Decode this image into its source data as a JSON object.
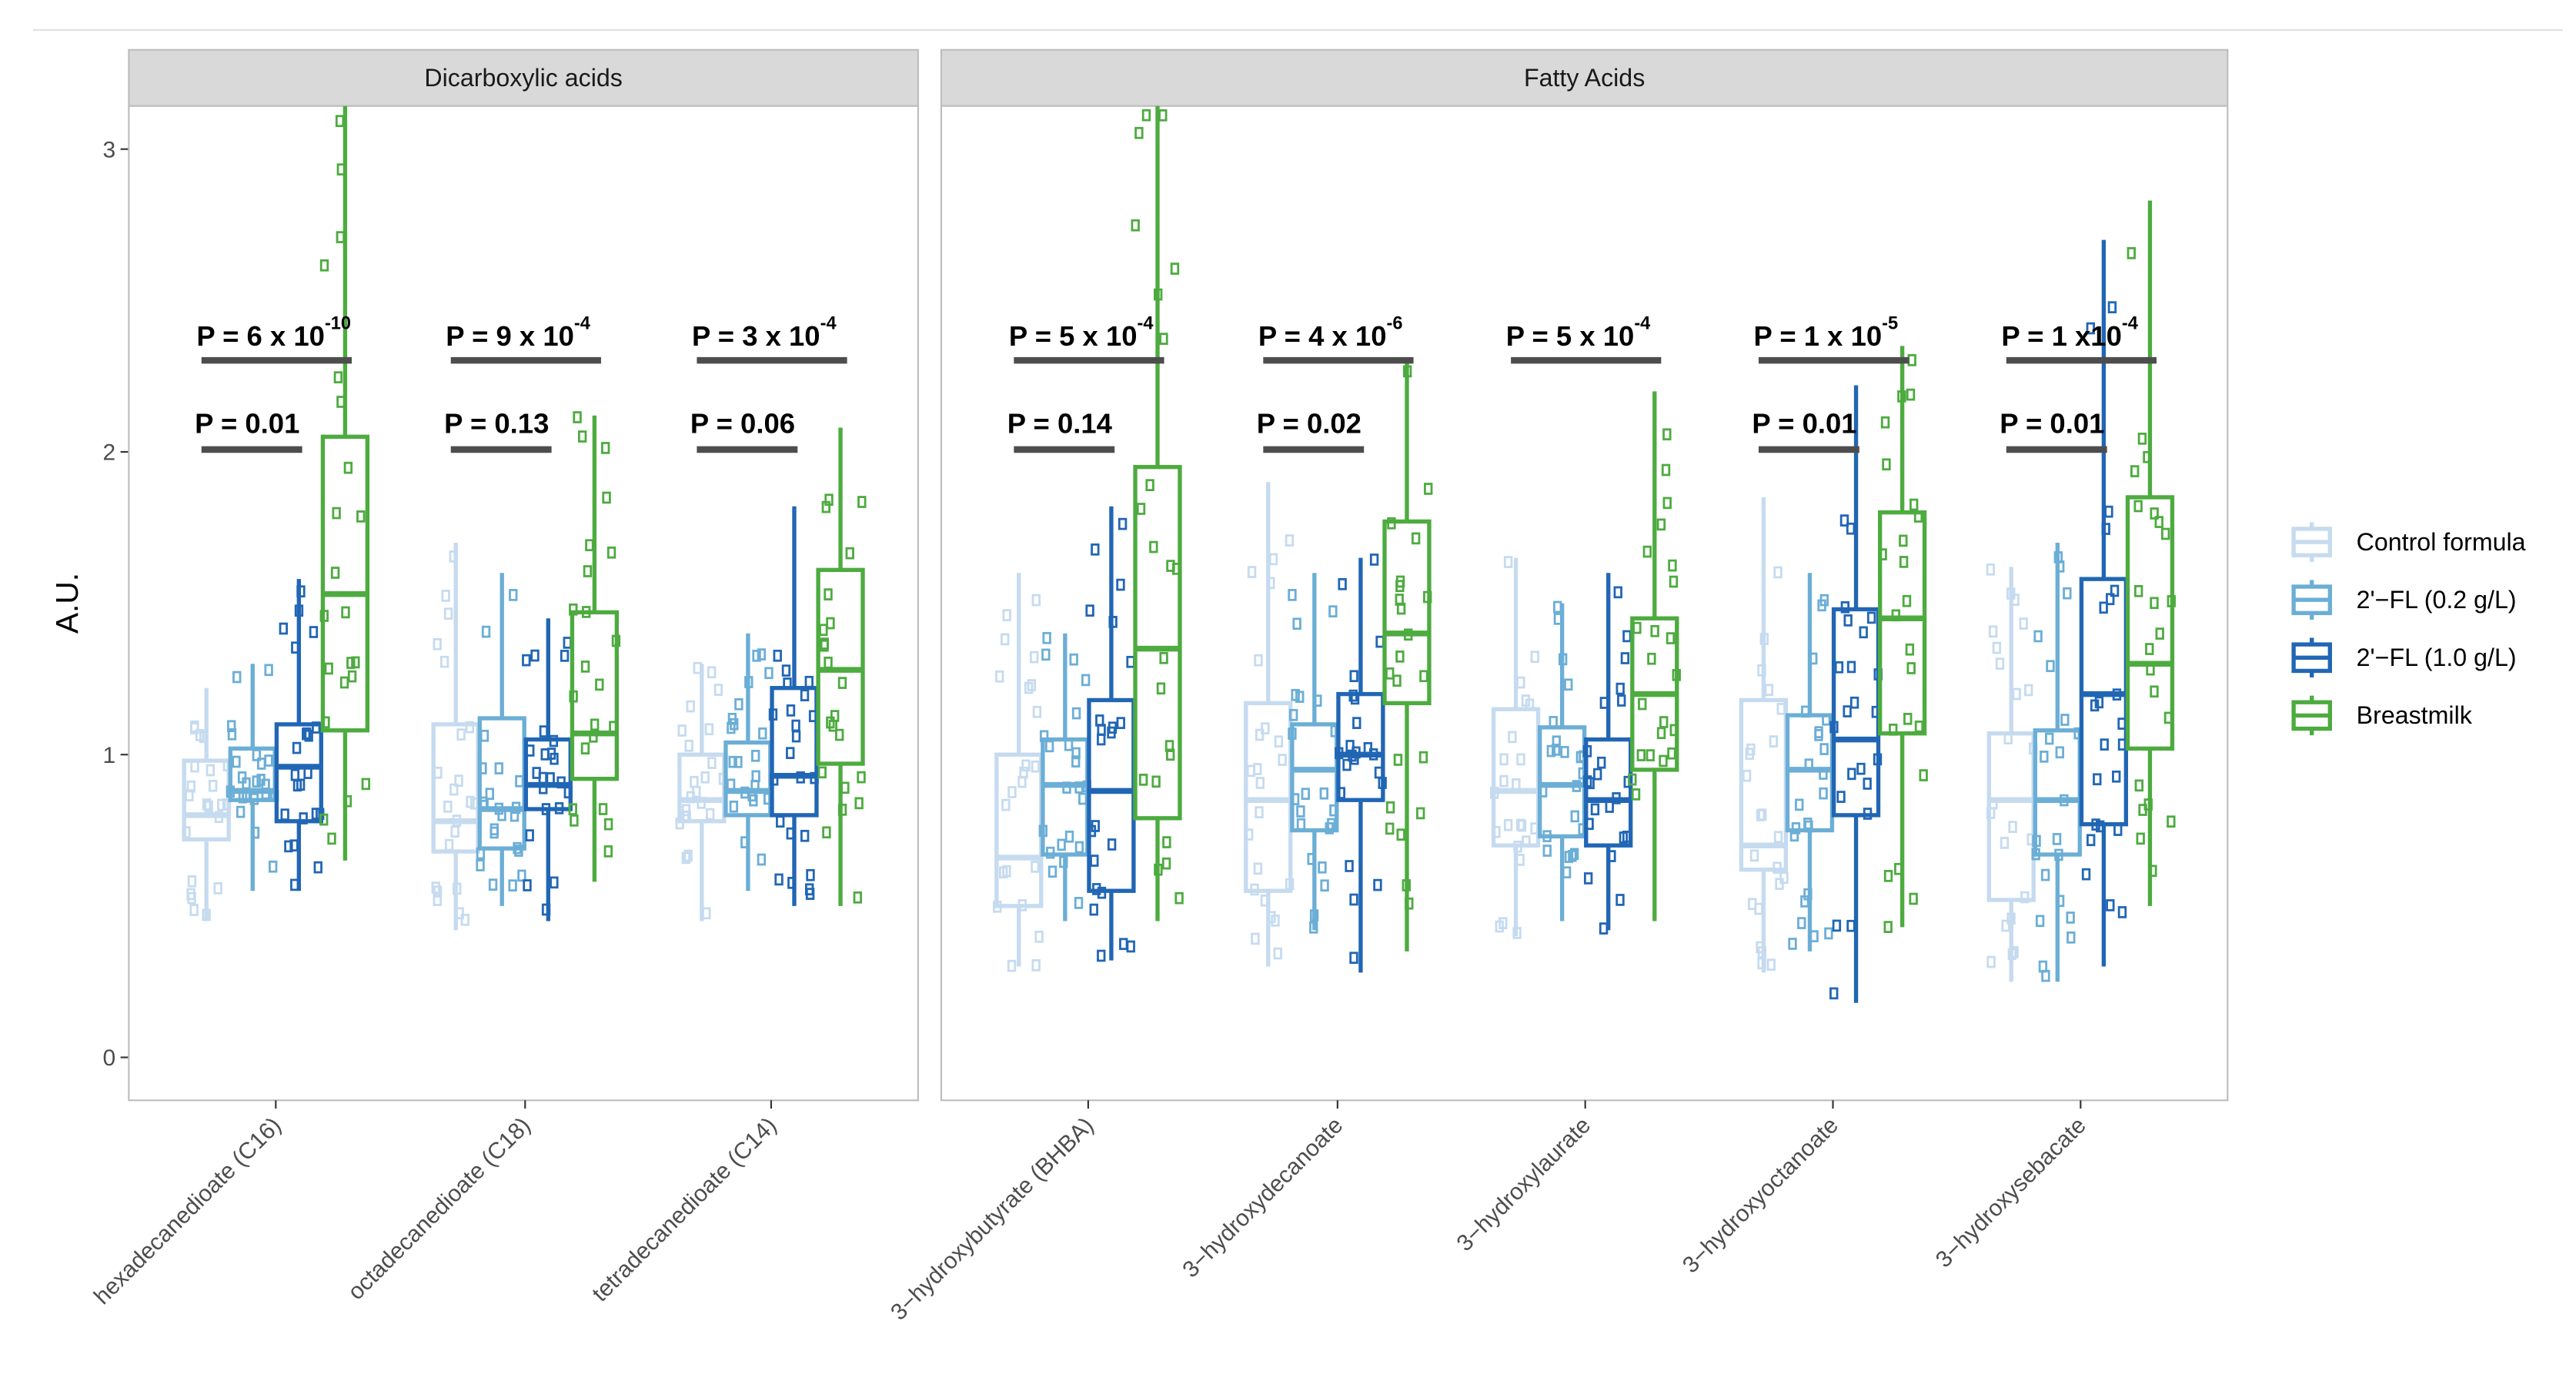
{
  "chart_data": {
    "type": "box",
    "ylabel": "A.U.",
    "xlabel": "",
    "ylim": [
      -0.15,
      3.1
    ],
    "yticks": [
      "0",
      "1",
      "2",
      "3"
    ],
    "grid": false,
    "legend_position": "right",
    "groups": [
      {
        "name": "Control formula",
        "color": "#c6dbef"
      },
      {
        "name": "2'−FL (0.2 g/L)",
        "color": "#6baed6"
      },
      {
        "name": "2'−FL (1.0 g/L)",
        "color": "#2166b5"
      },
      {
        "name": "Breastmilk",
        "color": "#4dab3f"
      }
    ],
    "facets": [
      {
        "title": "Dicarboxylic acids",
        "categories": [
          {
            "name": "hexadecanedioate (C16)",
            "p_long": {
              "base": "P = 6 x 10",
              "exp": "-10"
            },
            "p_short": "P = 0.01",
            "boxes": [
              [
                0.45,
                0.72,
                0.8,
                0.98,
                1.22
              ],
              [
                0.55,
                0.85,
                0.88,
                1.02,
                1.3
              ],
              [
                0.55,
                0.78,
                0.96,
                1.1,
                1.58
              ],
              [
                0.65,
                1.08,
                1.53,
                2.05,
                3.15
              ]
            ]
          },
          {
            "name": "octadecanedioate (C18)",
            "p_long": {
              "base": "P = 9 x 10",
              "exp": "-4"
            },
            "p_short": "P = 0.13",
            "boxes": [
              [
                0.42,
                0.68,
                0.78,
                1.1,
                1.7
              ],
              [
                0.5,
                0.69,
                0.82,
                1.12,
                1.6
              ],
              [
                0.45,
                0.82,
                0.9,
                1.05,
                1.45
              ],
              [
                0.58,
                0.92,
                1.07,
                1.47,
                2.12
              ]
            ]
          },
          {
            "name": "tetradecanedioate (C14)",
            "p_long": {
              "base": "P = 3 x 10",
              "exp": "-4"
            },
            "p_short": "P = 0.06",
            "boxes": [
              [
                0.45,
                0.78,
                0.85,
                1.0,
                1.3
              ],
              [
                0.55,
                0.8,
                0.88,
                1.04,
                1.4
              ],
              [
                0.5,
                0.8,
                0.93,
                1.22,
                1.82
              ],
              [
                0.5,
                0.97,
                1.28,
                1.61,
                2.08
              ]
            ]
          }
        ]
      },
      {
        "title": "Fatty Acids",
        "categories": [
          {
            "name": "3−hydroxybutyrate (BHBA)",
            "p_long": {
              "base": "P = 5 x 10",
              "exp": "-4"
            },
            "p_short": "P = 0.14",
            "boxes": [
              [
                0.3,
                0.5,
                0.66,
                1.0,
                1.6
              ],
              [
                0.45,
                0.67,
                0.9,
                1.05,
                1.4
              ],
              [
                0.32,
                0.55,
                0.88,
                1.18,
                1.82
              ],
              [
                0.45,
                0.79,
                1.35,
                1.95,
                3.15
              ]
            ]
          },
          {
            "name": "3−hydroxydecanoate",
            "p_long": {
              "base": "P = 4 x 10",
              "exp": "-6"
            },
            "p_short": "P = 0.02",
            "boxes": [
              [
                0.3,
                0.55,
                0.85,
                1.17,
                1.9
              ],
              [
                0.42,
                0.75,
                0.95,
                1.1,
                1.6
              ],
              [
                0.28,
                0.85,
                1.0,
                1.2,
                1.65
              ],
              [
                0.35,
                1.17,
                1.4,
                1.77,
                2.3
              ]
            ]
          },
          {
            "name": "3−hydroxylaurate",
            "p_long": {
              "base": "P = 5 x 10",
              "exp": "-4"
            },
            "p_short": null,
            "boxes": [
              [
                0.4,
                0.7,
                0.88,
                1.15,
                1.65
              ],
              [
                0.45,
                0.73,
                0.9,
                1.09,
                1.5
              ],
              [
                0.42,
                0.7,
                0.85,
                1.05,
                1.6
              ],
              [
                0.45,
                0.95,
                1.2,
                1.45,
                2.2
              ]
            ]
          },
          {
            "name": "3−hydroxyoctanoate",
            "p_long": {
              "base": "P = 1 x 10",
              "exp": "-5"
            },
            "p_short": "P = 0.01",
            "boxes": [
              [
                0.28,
                0.62,
                0.7,
                1.18,
                1.85
              ],
              [
                0.35,
                0.75,
                0.95,
                1.13,
                1.6
              ],
              [
                0.18,
                0.8,
                1.05,
                1.48,
                2.22
              ],
              [
                0.43,
                1.07,
                1.45,
                1.8,
                2.35
              ]
            ]
          },
          {
            "name": "3−hydroxysebacate",
            "p_long": {
              "base": "P = 1 x10",
              "exp": "-4"
            },
            "p_short": "P = 0.01",
            "boxes": [
              [
                0.25,
                0.52,
                0.85,
                1.07,
                1.62
              ],
              [
                0.25,
                0.67,
                0.85,
                1.08,
                1.7
              ],
              [
                0.3,
                0.77,
                1.2,
                1.58,
                2.7
              ],
              [
                0.5,
                1.02,
                1.3,
                1.85,
                2.83
              ]
            ]
          }
        ]
      }
    ]
  }
}
